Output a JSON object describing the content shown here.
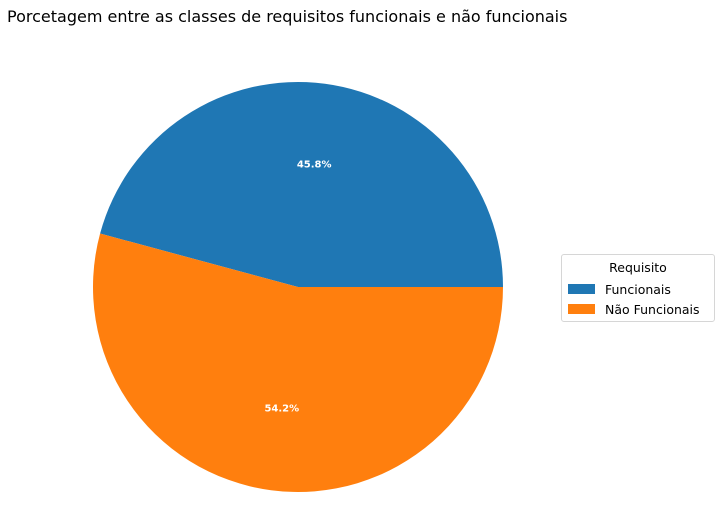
{
  "chart_data": {
    "type": "pie",
    "title": "Porcetagem entre as classes de requisitos funcionais e não funcionais",
    "categories": [
      "Funcionais",
      "Não Funcionais"
    ],
    "values": [
      45.8,
      54.2
    ],
    "labels": [
      "45.8%",
      "54.2%"
    ],
    "colors": [
      "#1f77b4",
      "#ff7f0e"
    ],
    "legend": {
      "title": "Requisito",
      "placement": "right"
    }
  }
}
